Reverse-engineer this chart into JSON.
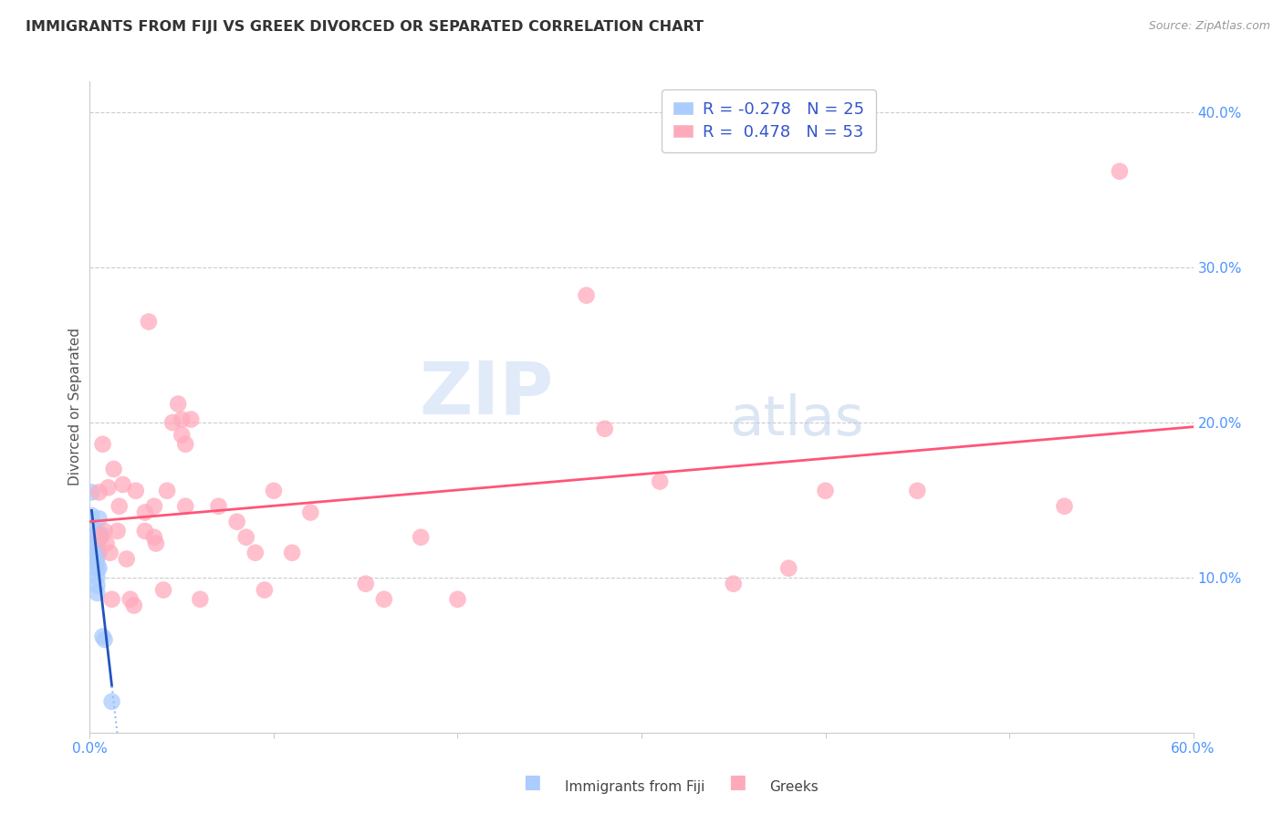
{
  "title": "IMMIGRANTS FROM FIJI VS GREEK DIVORCED OR SEPARATED CORRELATION CHART",
  "source": "Source: ZipAtlas.com",
  "tick_color": "#4d94ff",
  "ylabel": "Divorced or Separated",
  "xlim": [
    0.0,
    0.6
  ],
  "ylim": [
    0.0,
    0.42
  ],
  "x_ticks": [
    0.0,
    0.1,
    0.2,
    0.3,
    0.4,
    0.5,
    0.6
  ],
  "x_tick_labels": [
    "0.0%",
    "",
    "",
    "",
    "",
    "",
    "60.0%"
  ],
  "y_ticks_right": [
    0.1,
    0.2,
    0.3,
    0.4
  ],
  "y_tick_labels_right": [
    "10.0%",
    "20.0%",
    "30.0%",
    "40.0%"
  ],
  "fiji_color": "#aaccff",
  "greek_color": "#ffaabb",
  "fiji_line_color": "#2255bb",
  "greek_line_color": "#ff5577",
  "fiji_dashed_color": "#99bbee",
  "fiji_R": -0.278,
  "fiji_N": 25,
  "greek_R": 0.478,
  "greek_N": 53,
  "watermark_zip": "ZIP",
  "watermark_atlas": "atlas",
  "legend_label1": "R = -0.278   N = 25",
  "legend_label2": "R =  0.478   N = 53",
  "bottom_label1": "Immigrants from Fiji",
  "bottom_label2": "Greeks",
  "fiji_points": [
    [
      0.001,
      0.155
    ],
    [
      0.001,
      0.14
    ],
    [
      0.002,
      0.132
    ],
    [
      0.002,
      0.126
    ],
    [
      0.002,
      0.122
    ],
    [
      0.003,
      0.128
    ],
    [
      0.003,
      0.12
    ],
    [
      0.003,
      0.115
    ],
    [
      0.003,
      0.11
    ],
    [
      0.004,
      0.122
    ],
    [
      0.004,
      0.117
    ],
    [
      0.004,
      0.113
    ],
    [
      0.004,
      0.109
    ],
    [
      0.004,
      0.105
    ],
    [
      0.004,
      0.1
    ],
    [
      0.004,
      0.095
    ],
    [
      0.004,
      0.09
    ],
    [
      0.005,
      0.138
    ],
    [
      0.005,
      0.128
    ],
    [
      0.005,
      0.116
    ],
    [
      0.005,
      0.106
    ],
    [
      0.006,
      0.128
    ],
    [
      0.007,
      0.062
    ],
    [
      0.008,
      0.06
    ],
    [
      0.012,
      0.02
    ]
  ],
  "greek_points": [
    [
      0.005,
      0.155
    ],
    [
      0.006,
      0.126
    ],
    [
      0.007,
      0.186
    ],
    [
      0.008,
      0.13
    ],
    [
      0.009,
      0.122
    ],
    [
      0.01,
      0.158
    ],
    [
      0.011,
      0.116
    ],
    [
      0.012,
      0.086
    ],
    [
      0.013,
      0.17
    ],
    [
      0.015,
      0.13
    ],
    [
      0.016,
      0.146
    ],
    [
      0.018,
      0.16
    ],
    [
      0.02,
      0.112
    ],
    [
      0.022,
      0.086
    ],
    [
      0.024,
      0.082
    ],
    [
      0.025,
      0.156
    ],
    [
      0.03,
      0.142
    ],
    [
      0.03,
      0.13
    ],
    [
      0.032,
      0.265
    ],
    [
      0.035,
      0.146
    ],
    [
      0.035,
      0.126
    ],
    [
      0.036,
      0.122
    ],
    [
      0.04,
      0.092
    ],
    [
      0.042,
      0.156
    ],
    [
      0.045,
      0.2
    ],
    [
      0.048,
      0.212
    ],
    [
      0.05,
      0.202
    ],
    [
      0.05,
      0.192
    ],
    [
      0.052,
      0.186
    ],
    [
      0.052,
      0.146
    ],
    [
      0.055,
      0.202
    ],
    [
      0.06,
      0.086
    ],
    [
      0.07,
      0.146
    ],
    [
      0.08,
      0.136
    ],
    [
      0.085,
      0.126
    ],
    [
      0.09,
      0.116
    ],
    [
      0.095,
      0.092
    ],
    [
      0.1,
      0.156
    ],
    [
      0.11,
      0.116
    ],
    [
      0.12,
      0.142
    ],
    [
      0.15,
      0.096
    ],
    [
      0.16,
      0.086
    ],
    [
      0.18,
      0.126
    ],
    [
      0.2,
      0.086
    ],
    [
      0.27,
      0.282
    ],
    [
      0.28,
      0.196
    ],
    [
      0.31,
      0.162
    ],
    [
      0.35,
      0.096
    ],
    [
      0.38,
      0.106
    ],
    [
      0.4,
      0.156
    ],
    [
      0.45,
      0.156
    ],
    [
      0.53,
      0.146
    ],
    [
      0.56,
      0.362
    ]
  ]
}
